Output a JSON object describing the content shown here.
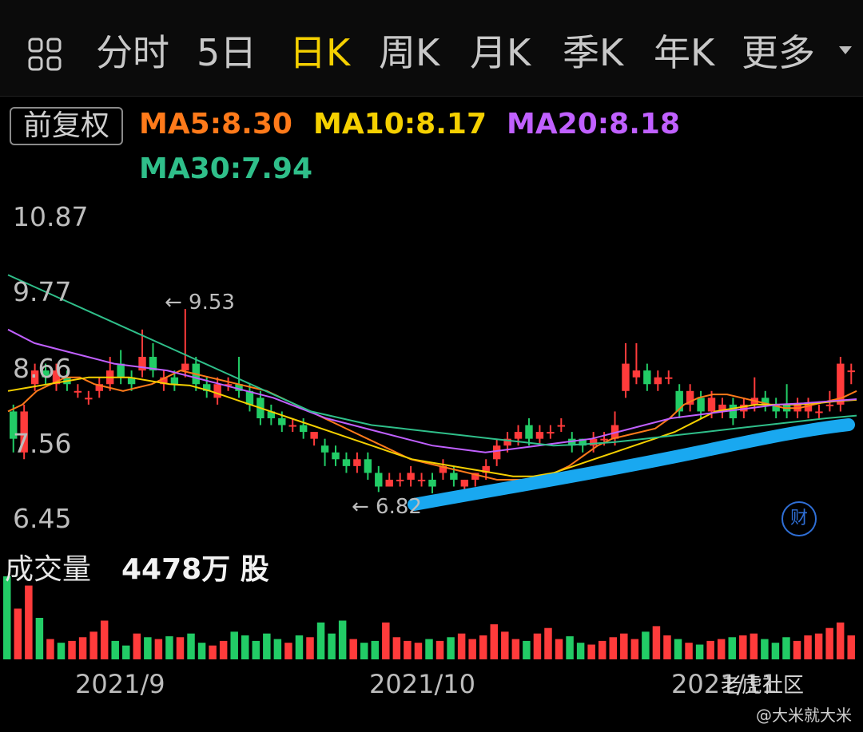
{
  "tabs": [
    "分时",
    "5日",
    "日K",
    "周K",
    "月K",
    "季K",
    "年K",
    "更多"
  ],
  "active_tab": "日K",
  "adjust_label": "前复权",
  "ma": [
    {
      "label": "MA5:8.30",
      "color": "#ff7a1a"
    },
    {
      "label": "MA10:8.17",
      "color": "#f5d000"
    },
    {
      "label": "MA20:8.18",
      "color": "#c060ff"
    },
    {
      "label": "MA30:7.94",
      "color": "#2fbf8a"
    }
  ],
  "price_labels": [
    "10.87",
    "9.77",
    "8.66",
    "7.56",
    "6.45"
  ],
  "marks": {
    "high": "← 9.53",
    "low": "← 6.82"
  },
  "volume": {
    "title": "成交量",
    "value": "4478万 股"
  },
  "dates": [
    "2021/9",
    "2021/10",
    "2021/11"
  ],
  "watermark": "老虎社区",
  "user": "@大米就大米",
  "cai_icon": "财",
  "colors": {
    "up": "#ff3b3b",
    "down": "#22cc66",
    "trend": "#19a8f0"
  },
  "chart_data": {
    "type": "candlestick",
    "ylim": [
      6.45,
      10.87
    ],
    "candles": [
      [
        8.0,
        7.6,
        8.1,
        7.4
      ],
      [
        7.4,
        8.0,
        8.1,
        7.3
      ],
      [
        8.4,
        8.6,
        8.7,
        8.3
      ],
      [
        8.6,
        8.5,
        8.7,
        8.4
      ],
      [
        8.4,
        8.6,
        8.7,
        8.3
      ],
      [
        8.5,
        8.4,
        8.6,
        8.3
      ],
      [
        8.3,
        8.3,
        8.4,
        8.2
      ],
      [
        8.2,
        8.2,
        8.3,
        8.1
      ],
      [
        8.3,
        8.4,
        8.5,
        8.2
      ],
      [
        8.4,
        8.6,
        8.8,
        8.3
      ],
      [
        8.7,
        8.5,
        8.9,
        8.4
      ],
      [
        8.5,
        8.4,
        8.6,
        8.3
      ],
      [
        8.6,
        8.8,
        9.2,
        8.5
      ],
      [
        8.8,
        8.6,
        9.0,
        8.5
      ],
      [
        8.4,
        8.5,
        8.6,
        8.3
      ],
      [
        8.5,
        8.4,
        8.6,
        8.3
      ],
      [
        8.6,
        8.7,
        9.5,
        8.5
      ],
      [
        8.7,
        8.4,
        8.8,
        8.3
      ],
      [
        8.4,
        8.3,
        8.5,
        8.2
      ],
      [
        8.2,
        8.4,
        8.5,
        8.1
      ],
      [
        8.4,
        8.4,
        8.5,
        8.3
      ],
      [
        8.4,
        8.3,
        8.8,
        8.2
      ],
      [
        8.3,
        8.1,
        8.4,
        8.0
      ],
      [
        8.2,
        7.9,
        8.3,
        7.8
      ],
      [
        8.0,
        7.9,
        8.1,
        7.8
      ],
      [
        7.9,
        7.8,
        8.0,
        7.7
      ],
      [
        7.8,
        7.8,
        7.9,
        7.7
      ],
      [
        7.8,
        7.7,
        7.9,
        7.6
      ],
      [
        7.6,
        7.7,
        7.7,
        7.5
      ],
      [
        7.5,
        7.4,
        7.6,
        7.2
      ],
      [
        7.4,
        7.3,
        7.5,
        7.2
      ],
      [
        7.3,
        7.2,
        7.4,
        7.1
      ],
      [
        7.2,
        7.3,
        7.4,
        7.1
      ],
      [
        7.3,
        7.1,
        7.4,
        7.0
      ],
      [
        7.1,
        6.9,
        7.2,
        6.82
      ],
      [
        6.9,
        7.0,
        7.1,
        6.9
      ],
      [
        7.0,
        7.0,
        7.1,
        6.9
      ],
      [
        7.0,
        7.1,
        7.2,
        6.9
      ],
      [
        7.0,
        7.0,
        7.1,
        6.9
      ],
      [
        7.0,
        6.9,
        7.1,
        6.8
      ],
      [
        7.1,
        7.2,
        7.3,
        7.0
      ],
      [
        7.1,
        7.0,
        7.2,
        6.9
      ],
      [
        6.9,
        7.0,
        7.0,
        6.8
      ],
      [
        7.0,
        7.1,
        7.1,
        6.9
      ],
      [
        7.1,
        7.2,
        7.3,
        7.0
      ],
      [
        7.3,
        7.5,
        7.6,
        7.2
      ],
      [
        7.5,
        7.6,
        7.7,
        7.4
      ],
      [
        7.6,
        7.7,
        7.8,
        7.5
      ],
      [
        7.8,
        7.6,
        7.9,
        7.5
      ],
      [
        7.6,
        7.7,
        7.8,
        7.5
      ],
      [
        7.7,
        7.7,
        7.8,
        7.6
      ],
      [
        7.8,
        7.8,
        7.9,
        7.7
      ],
      [
        7.6,
        7.5,
        7.7,
        7.4
      ],
      [
        7.6,
        7.5,
        7.6,
        7.4
      ],
      [
        7.5,
        7.6,
        7.7,
        7.4
      ],
      [
        7.6,
        7.6,
        7.7,
        7.5
      ],
      [
        7.6,
        7.8,
        8.0,
        7.5
      ],
      [
        8.3,
        8.7,
        9.0,
        8.2
      ],
      [
        8.5,
        8.6,
        9.0,
        8.4
      ],
      [
        8.6,
        8.4,
        8.7,
        8.3
      ],
      [
        8.4,
        8.5,
        8.6,
        8.3
      ],
      [
        8.5,
        8.5,
        8.6,
        8.4
      ],
      [
        8.3,
        8.0,
        8.4,
        7.9
      ],
      [
        8.1,
        8.3,
        8.4,
        8.0
      ],
      [
        8.2,
        8.0,
        8.3,
        7.9
      ],
      [
        8.0,
        8.2,
        8.3,
        7.9
      ],
      [
        8.0,
        8.1,
        8.2,
        7.9
      ],
      [
        8.1,
        7.9,
        8.2,
        7.8
      ],
      [
        8.0,
        8.1,
        8.2,
        7.9
      ],
      [
        8.1,
        8.2,
        8.5,
        8.0
      ],
      [
        8.2,
        8.1,
        8.3,
        8.0
      ],
      [
        8.1,
        8.0,
        8.2,
        7.9
      ],
      [
        8.1,
        8.0,
        8.4,
        7.9
      ],
      [
        8.0,
        8.1,
        8.2,
        7.9
      ],
      [
        8.0,
        8.1,
        8.2,
        7.9
      ],
      [
        8.0,
        8.0,
        8.1,
        7.9
      ],
      [
        8.1,
        8.1,
        8.3,
        8.0
      ],
      [
        8.1,
        8.7,
        8.8,
        8.0
      ],
      [
        8.6,
        8.6,
        8.7,
        8.4
      ]
    ],
    "ma_series": {
      "MA5": [
        8.0,
        8.1,
        8.3,
        8.4,
        8.5,
        8.5,
        8.4,
        8.35,
        8.3,
        8.35,
        8.4,
        8.5,
        8.6,
        8.55,
        8.5,
        8.45,
        8.4,
        8.35,
        8.3,
        8.2,
        8.1,
        8.0,
        7.9,
        7.8,
        7.7,
        7.6,
        7.5,
        7.4,
        7.3,
        7.25,
        7.2,
        7.15,
        7.1,
        7.05,
        7.0,
        7.0,
        7.0,
        7.05,
        7.1,
        7.2,
        7.35,
        7.5,
        7.6,
        7.65,
        7.7,
        7.75,
        7.9,
        8.1,
        8.2,
        8.25,
        8.25,
        8.2,
        8.15,
        8.1,
        8.05,
        8.05,
        8.1,
        8.15,
        8.2,
        8.3
      ],
      "MA10": [
        8.3,
        8.35,
        8.4,
        8.45,
        8.5,
        8.5,
        8.5,
        8.45,
        8.4,
        8.38,
        8.3,
        8.2,
        8.1,
        8.0,
        7.9,
        7.8,
        7.7,
        7.6,
        7.5,
        7.4,
        7.3,
        7.25,
        7.2,
        7.15,
        7.1,
        7.05,
        7.05,
        7.1,
        7.2,
        7.3,
        7.4,
        7.5,
        7.6,
        7.7,
        7.85,
        8.0,
        8.05,
        8.1,
        8.1,
        8.1,
        8.12,
        8.15,
        8.17
      ],
      "MA20": [
        9.2,
        9.0,
        8.9,
        8.8,
        8.7,
        8.65,
        8.6,
        8.5,
        8.4,
        8.3,
        8.2,
        8.05,
        7.9,
        7.8,
        7.7,
        7.6,
        7.5,
        7.45,
        7.4,
        7.45,
        7.5,
        7.55,
        7.6,
        7.7,
        7.8,
        7.9,
        7.95,
        8.0,
        8.05,
        8.1,
        8.12,
        8.15,
        8.18
      ],
      "MA30": [
        10.0,
        9.8,
        9.6,
        9.4,
        9.2,
        9.0,
        8.8,
        8.6,
        8.4,
        8.2,
        8.0,
        7.9,
        7.8,
        7.75,
        7.7,
        7.65,
        7.6,
        7.55,
        7.5,
        7.52,
        7.55,
        7.6,
        7.65,
        7.7,
        7.75,
        7.8,
        7.85,
        7.9,
        7.94
      ]
    },
    "volume": [
      90,
      55,
      80,
      45,
      22,
      18,
      20,
      24,
      30,
      42,
      20,
      15,
      28,
      24,
      22,
      25,
      24,
      28,
      18,
      15,
      20,
      30,
      26,
      20,
      28,
      22,
      18,
      26,
      24,
      40,
      28,
      42,
      22,
      18,
      20,
      40,
      24,
      20,
      18,
      22,
      20,
      24,
      28,
      22,
      26,
      38,
      30,
      22,
      20,
      28,
      34,
      22,
      25,
      18,
      16,
      20,
      24,
      28,
      22,
      30,
      36,
      26,
      22,
      18,
      16,
      20,
      22,
      24,
      26,
      28,
      22,
      18,
      24,
      20,
      26,
      28,
      34,
      40,
      26
    ]
  }
}
